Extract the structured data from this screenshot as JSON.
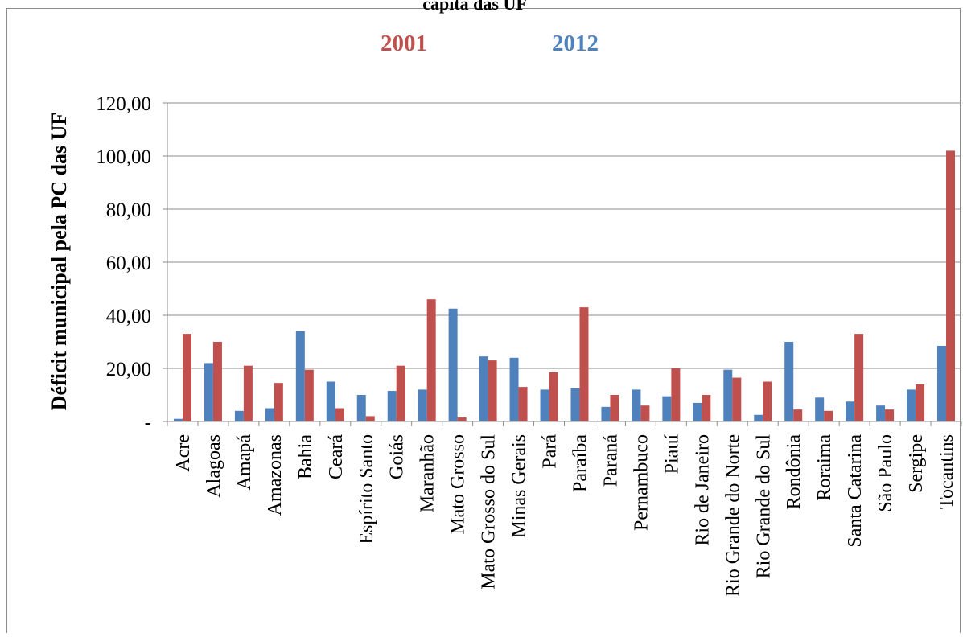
{
  "chart_data": {
    "type": "bar",
    "title": "capita das UF",
    "ylabel": "Déficit municipal pela PC das UF",
    "xlabel": "",
    "ylim": [
      0,
      120
    ],
    "ytick_labels": [
      "-",
      "20,00",
      "40,00",
      "60,00",
      "80,00",
      "100,00",
      "120,00"
    ],
    "ytick_values": [
      0,
      20,
      40,
      60,
      80,
      100,
      120
    ],
    "grid": true,
    "legend_position": "top",
    "categories": [
      "Acre",
      "Alagoas",
      "Amapá",
      "Amazonas",
      "Bahia",
      "Ceará",
      "Espírito Santo",
      "Goiás",
      "Maranhão",
      "Mato Grosso",
      "Mato Grosso do Sul",
      "Minas Gerais",
      "Pará",
      "Paraíba",
      "Paraná",
      "Pernambuco",
      "Piauí",
      "Rio de Janeiro",
      "Rio Grande do Norte",
      "Rio Grande do Sul",
      "Rondônia",
      "Roraima",
      "Santa Catarina",
      "São Paulo",
      "Sergipe",
      "Tocantins"
    ],
    "series": [
      {
        "name": "2012",
        "color": "#4f81bd",
        "values": [
          1,
          22,
          4,
          5,
          34,
          15,
          10,
          11.5,
          12,
          42.5,
          24.5,
          24,
          12,
          12.5,
          5.5,
          12,
          9.5,
          7,
          19.5,
          2.5,
          30,
          9,
          7.5,
          6,
          12,
          28.5
        ]
      },
      {
        "name": "2001",
        "color": "#c0504d",
        "values": [
          33,
          30,
          21,
          14.5,
          19.5,
          5,
          2,
          21,
          46,
          1.5,
          23,
          13,
          18.5,
          43,
          10,
          6,
          20,
          10,
          16.5,
          15,
          4.5,
          4,
          33,
          4.5,
          14,
          102
        ]
      }
    ]
  }
}
